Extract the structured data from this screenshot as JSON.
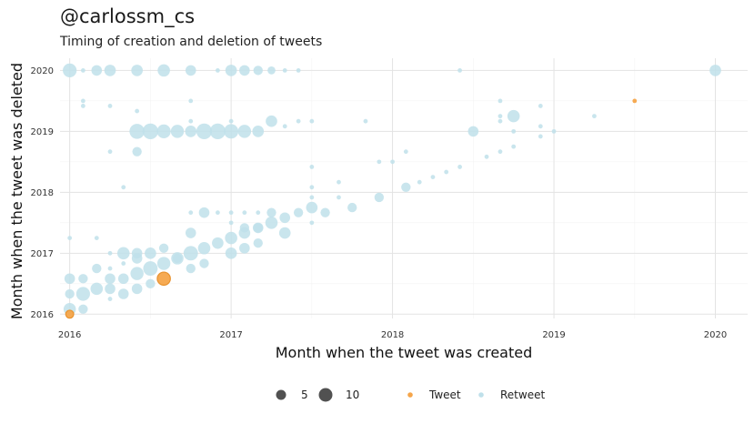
{
  "header": {
    "title": "@carlossm_cs",
    "subtitle": "Timing of creation and deletion of tweets"
  },
  "chart_data": {
    "type": "scatter",
    "title": "@carlossm_cs",
    "subtitle": "Timing of creation and deletion of tweets",
    "xlabel": "Month when the tweet was created",
    "ylabel": "Month when the tweet was deleted",
    "x_ticks": [
      2016,
      2017,
      2018,
      2019,
      2020
    ],
    "y_ticks": [
      2016,
      2017,
      2018,
      2019,
      2020
    ],
    "xlim": [
      2015.94,
      2020.2
    ],
    "ylim": [
      2015.93,
      2020.2
    ],
    "grid": true,
    "legend": {
      "position": "bottom",
      "size_entries": [
        {
          "label": "5",
          "value": 5
        },
        {
          "label": "10",
          "value": 10
        }
      ],
      "color_entries": [
        {
          "label": "Tweet",
          "color": "#f5a54a"
        },
        {
          "label": "Retweet",
          "color": "#bfe0ea"
        }
      ]
    },
    "colors": {
      "Tweet": "#f5a54a",
      "Retweet": "#bfe0ea"
    },
    "series": [
      {
        "name": "Retweet",
        "points": [
          [
            2016.0,
            2020.0,
            8
          ],
          [
            2016.083,
            2020.0,
            1
          ],
          [
            2016.167,
            2020.0,
            4
          ],
          [
            2016.25,
            2020.0,
            5
          ],
          [
            2016.417,
            2020.0,
            5
          ],
          [
            2016.583,
            2020.0,
            6
          ],
          [
            2016.75,
            2020.0,
            4
          ],
          [
            2016.917,
            2020.0,
            1
          ],
          [
            2017.0,
            2020.0,
            5
          ],
          [
            2017.083,
            2020.0,
            4
          ],
          [
            2017.167,
            2020.0,
            3
          ],
          [
            2017.25,
            2020.0,
            2
          ],
          [
            2017.333,
            2020.0,
            1
          ],
          [
            2017.417,
            2020.0,
            1
          ],
          [
            2018.417,
            2020.0,
            1
          ],
          [
            2020.0,
            2020.0,
            5
          ],
          [
            2016.083,
            2019.5,
            1
          ],
          [
            2016.083,
            2019.417,
            1
          ],
          [
            2016.25,
            2019.417,
            1
          ],
          [
            2016.417,
            2019.333,
            1
          ],
          [
            2016.417,
            2019.0,
            10
          ],
          [
            2016.5,
            2019.0,
            11
          ],
          [
            2016.583,
            2019.0,
            8
          ],
          [
            2016.667,
            2019.0,
            7
          ],
          [
            2016.75,
            2019.0,
            5
          ],
          [
            2016.833,
            2019.0,
            11
          ],
          [
            2016.917,
            2019.0,
            11
          ],
          [
            2017.0,
            2019.0,
            9
          ],
          [
            2017.083,
            2019.0,
            7
          ],
          [
            2017.167,
            2019.0,
            5
          ],
          [
            2017.25,
            2019.167,
            5
          ],
          [
            2017.333,
            2019.083,
            1
          ],
          [
            2017.417,
            2019.167,
            1
          ],
          [
            2017.5,
            2019.167,
            1
          ],
          [
            2016.75,
            2019.5,
            1
          ],
          [
            2016.75,
            2019.167,
            1
          ],
          [
            2017.0,
            2019.167,
            1
          ],
          [
            2017.833,
            2019.167,
            1
          ],
          [
            2018.5,
            2019.0,
            4
          ],
          [
            2018.667,
            2019.5,
            1
          ],
          [
            2018.667,
            2019.25,
            1
          ],
          [
            2018.667,
            2019.167,
            1
          ],
          [
            2018.75,
            2019.25,
            6
          ],
          [
            2018.75,
            2019.0,
            1
          ],
          [
            2018.917,
            2019.417,
            1
          ],
          [
            2018.917,
            2019.083,
            1
          ],
          [
            2018.917,
            2018.917,
            1
          ],
          [
            2019.0,
            2019.0,
            1
          ],
          [
            2019.25,
            2019.25,
            1
          ],
          [
            2016.25,
            2018.667,
            1
          ],
          [
            2016.417,
            2018.667,
            3
          ],
          [
            2016.333,
            2018.083,
            1
          ],
          [
            2017.5,
            2018.417,
            1
          ],
          [
            2017.5,
            2018.083,
            1
          ],
          [
            2017.5,
            2017.917,
            1
          ],
          [
            2017.5,
            2017.5,
            1
          ],
          [
            2017.667,
            2018.167,
            1
          ],
          [
            2017.667,
            2017.917,
            1
          ],
          [
            2017.75,
            2017.75,
            3
          ],
          [
            2017.917,
            2018.5,
            1
          ],
          [
            2018.0,
            2018.5,
            1
          ],
          [
            2018.083,
            2018.667,
            1
          ],
          [
            2017.917,
            2017.917,
            3
          ],
          [
            2018.083,
            2018.083,
            3
          ],
          [
            2018.167,
            2018.167,
            1
          ],
          [
            2018.25,
            2018.25,
            1
          ],
          [
            2018.333,
            2018.333,
            1
          ],
          [
            2018.417,
            2018.417,
            1
          ],
          [
            2018.583,
            2018.583,
            1
          ],
          [
            2018.667,
            2018.667,
            1
          ],
          [
            2018.75,
            2018.75,
            1
          ],
          [
            2016.0,
            2017.25,
            1
          ],
          [
            2016.167,
            2017.25,
            1
          ],
          [
            2016.75,
            2017.667,
            1
          ],
          [
            2016.833,
            2017.667,
            4
          ],
          [
            2016.917,
            2017.667,
            1
          ],
          [
            2017.0,
            2017.667,
            1
          ],
          [
            2017.083,
            2017.667,
            1
          ],
          [
            2017.167,
            2017.667,
            1
          ],
          [
            2017.25,
            2017.667,
            3
          ],
          [
            2017.0,
            2017.5,
            1
          ],
          [
            2017.083,
            2017.417,
            3
          ],
          [
            2017.167,
            2017.417,
            4
          ],
          [
            2017.25,
            2017.5,
            6
          ],
          [
            2017.333,
            2017.583,
            4
          ],
          [
            2017.417,
            2017.667,
            3
          ],
          [
            2017.5,
            2017.75,
            5
          ],
          [
            2017.583,
            2017.667,
            3
          ],
          [
            2017.0,
            2017.25,
            6
          ],
          [
            2017.083,
            2017.333,
            5
          ],
          [
            2017.167,
            2017.417,
            3
          ],
          [
            2017.333,
            2017.333,
            5
          ],
          [
            2016.75,
            2017.333,
            4
          ],
          [
            2016.833,
            2017.083,
            6
          ],
          [
            2016.917,
            2017.167,
            5
          ],
          [
            2017.0,
            2017.0,
            5
          ],
          [
            2017.083,
            2017.083,
            4
          ],
          [
            2017.167,
            2017.167,
            3
          ],
          [
            2016.25,
            2017.0,
            1
          ],
          [
            2016.333,
            2017.0,
            6
          ],
          [
            2016.417,
            2017.0,
            4
          ],
          [
            2016.5,
            2017.0,
            5
          ],
          [
            2016.583,
            2017.083,
            3
          ],
          [
            2016.667,
            2016.917,
            6
          ],
          [
            2016.75,
            2017.0,
            9
          ],
          [
            2016.25,
            2016.75,
            1
          ],
          [
            2016.333,
            2016.833,
            1
          ],
          [
            2016.417,
            2016.917,
            4
          ],
          [
            2016.5,
            2016.75,
            9
          ],
          [
            2016.583,
            2016.833,
            7
          ],
          [
            2016.667,
            2016.917,
            3
          ],
          [
            2016.75,
            2016.75,
            3
          ],
          [
            2016.833,
            2016.833,
            3
          ],
          [
            2016.0,
            2016.583,
            4
          ],
          [
            2016.0,
            2016.333,
            3
          ],
          [
            2016.083,
            2016.583,
            3
          ],
          [
            2016.083,
            2016.333,
            8
          ],
          [
            2016.167,
            2016.75,
            3
          ],
          [
            2016.167,
            2016.417,
            6
          ],
          [
            2016.25,
            2016.583,
            4
          ],
          [
            2016.25,
            2016.417,
            4
          ],
          [
            2016.333,
            2016.583,
            4
          ],
          [
            2016.333,
            2016.333,
            4
          ],
          [
            2016.417,
            2016.667,
            7
          ],
          [
            2016.417,
            2016.417,
            4
          ],
          [
            2016.5,
            2016.5,
            3
          ],
          [
            2016.0,
            2016.083,
            6
          ],
          [
            2016.083,
            2016.083,
            3
          ],
          [
            2016.25,
            2016.25,
            1
          ]
        ]
      },
      {
        "name": "Tweet",
        "points": [
          [
            2016.0,
            2016.0,
            2
          ],
          [
            2016.583,
            2016.583,
            7
          ],
          [
            2019.5,
            2019.5,
            1
          ]
        ]
      }
    ]
  }
}
